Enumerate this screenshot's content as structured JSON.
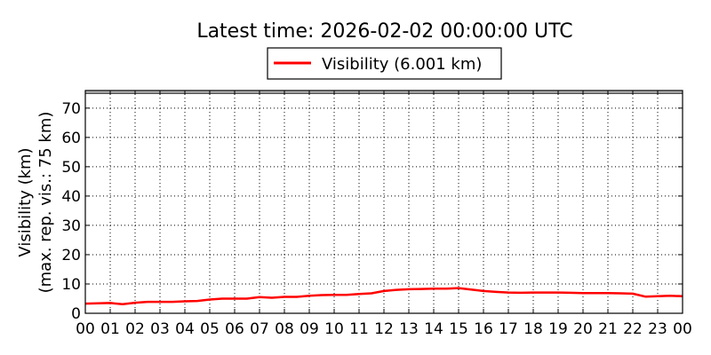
{
  "chart_data": {
    "type": "line",
    "title": "Latest time: 2026-02-02 00:00:00 UTC",
    "xlabel": "",
    "ylabel_line1": "Visibility (km)",
    "ylabel_line2": "(max. rep. vis.: 75 km)",
    "xlim": [
      0,
      24
    ],
    "ylim": [
      0,
      76
    ],
    "x_tick_values": [
      0,
      1,
      2,
      3,
      4,
      5,
      6,
      7,
      8,
      9,
      10,
      11,
      12,
      13,
      14,
      15,
      16,
      17,
      18,
      19,
      20,
      21,
      22,
      23,
      24
    ],
    "x_tick_labels": [
      "00",
      "01",
      "02",
      "03",
      "04",
      "05",
      "06",
      "07",
      "08",
      "09",
      "10",
      "11",
      "12",
      "13",
      "14",
      "15",
      "16",
      "17",
      "18",
      "19",
      "20",
      "21",
      "22",
      "23",
      "00"
    ],
    "y_ticks": [
      0,
      10,
      20,
      30,
      40,
      50,
      60,
      70
    ],
    "max_reported_visibility": 75,
    "grid": true,
    "legend_position": "top-center",
    "series": [
      {
        "name": "Visibility (6.001 km)",
        "color": "#ff0000",
        "x": [
          0,
          0.5,
          1,
          1.5,
          2,
          2.5,
          3,
          3.5,
          4,
          4.5,
          5,
          5.5,
          6,
          6.5,
          7,
          7.5,
          8,
          8.5,
          9,
          9.5,
          10,
          10.5,
          11,
          11.5,
          12,
          12.5,
          13,
          13.5,
          14,
          14.5,
          15,
          15.5,
          16,
          16.5,
          17,
          17.5,
          18,
          18.5,
          19,
          19.5,
          20,
          20.5,
          21,
          21.5,
          22,
          22.5,
          23,
          23.5,
          24
        ],
        "y": [
          3.3,
          3.4,
          3.5,
          3.1,
          3.6,
          3.9,
          3.9,
          3.9,
          4.1,
          4.2,
          4.7,
          5.0,
          5.0,
          5.0,
          5.5,
          5.3,
          5.6,
          5.6,
          6.0,
          6.2,
          6.3,
          6.3,
          6.6,
          6.8,
          7.6,
          8.0,
          8.2,
          8.3,
          8.4,
          8.4,
          8.6,
          8.1,
          7.6,
          7.3,
          7.1,
          7.0,
          7.1,
          7.1,
          7.1,
          7.0,
          6.9,
          6.9,
          6.9,
          6.8,
          6.7,
          5.7,
          5.8,
          6.0,
          5.8
        ]
      }
    ]
  }
}
